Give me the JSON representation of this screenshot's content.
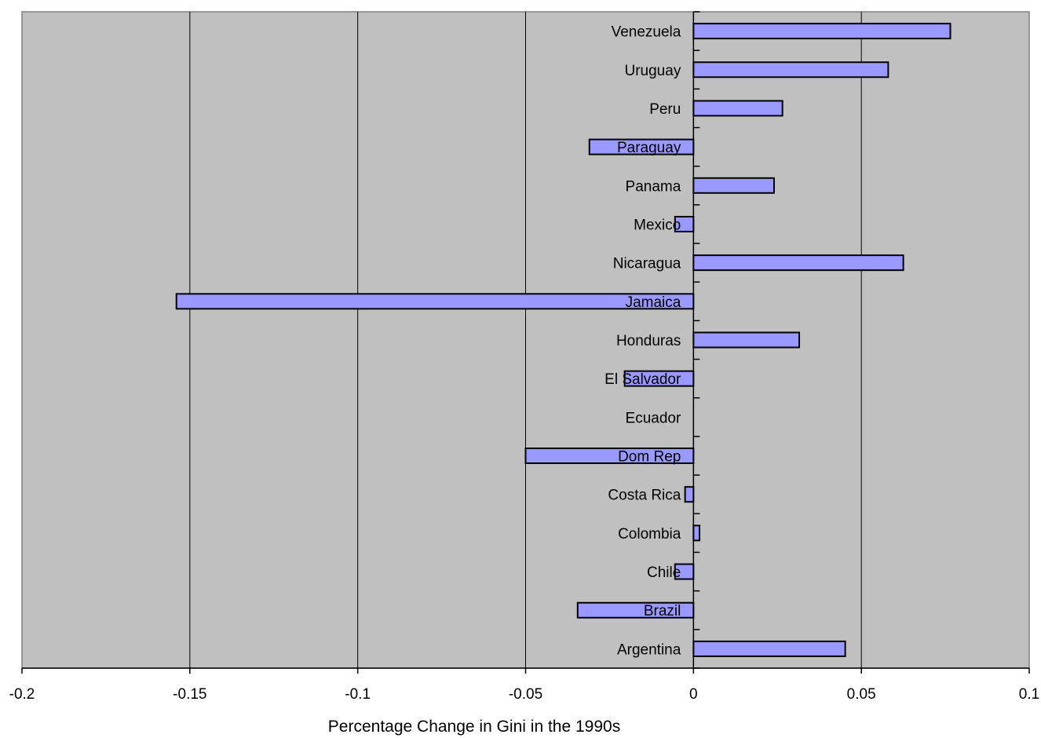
{
  "chart_data": {
    "type": "bar",
    "orientation": "horizontal",
    "title": "",
    "xlabel": "Percentage Change in Gini in the 1990s",
    "ylabel": "",
    "xlim": [
      -0.2,
      0.1
    ],
    "xticks": [
      -0.2,
      -0.15,
      -0.1,
      -0.05,
      0,
      0.05,
      0.1
    ],
    "xtick_labels": [
      "-0.2",
      "-0.15",
      "-0.1",
      "-0.05",
      "0",
      "0.05",
      "0.1"
    ],
    "grid": "vertical major gridlines",
    "legend": "none",
    "categories": [
      "Venezuela",
      "Uruguay",
      "Peru",
      "Paraguay",
      "Panama",
      "Mexico",
      "Nicaragua",
      "Jamaica",
      "Honduras",
      "El Salvador",
      "Ecuador",
      "Dom Rep",
      "Costa Rica",
      "Colombia",
      "Chile",
      "Brazil",
      "Argentina"
    ],
    "values": [
      0.0765,
      0.058,
      0.0265,
      -0.031,
      0.024,
      -0.0055,
      0.0625,
      -0.154,
      0.0315,
      -0.0205,
      0,
      -0.05,
      -0.0025,
      0.0018,
      -0.0055,
      -0.0345,
      0.0452
    ]
  },
  "colors": {
    "plot_background": "#c0c0c0",
    "bar_fill": "#9999ff",
    "bar_stroke": "#000000",
    "gridline": "#000000",
    "page_background": "#ffffff"
  }
}
